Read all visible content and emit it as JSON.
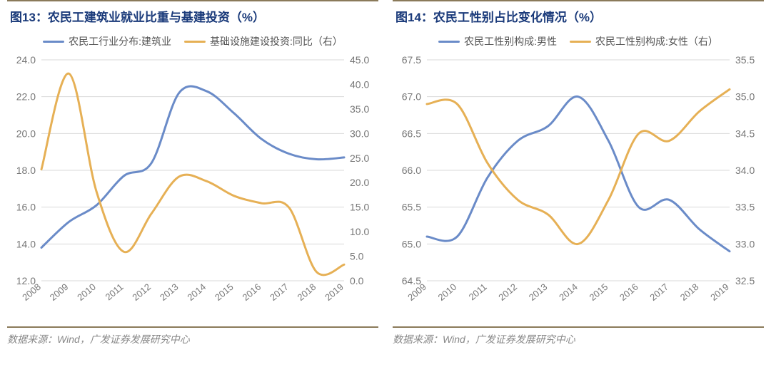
{
  "left": {
    "title": "图13：农民工建筑业就业比重与基建投资（%）",
    "source": "数据来源：Wind，广发证券发展研究中心",
    "chart": {
      "type": "line-dual-axis",
      "series": [
        {
          "name": "农民工行业分布:建筑业",
          "color": "#6a8bc8",
          "axis": "left",
          "x": [
            2008,
            2009,
            2010,
            2011,
            2012,
            2013,
            2014,
            2015,
            2016,
            2017,
            2018,
            2019
          ],
          "y": [
            13.8,
            15.2,
            16.1,
            17.7,
            18.4,
            22.2,
            22.3,
            21.1,
            19.7,
            18.9,
            18.6,
            18.7
          ]
        },
        {
          "name": "基础设施建设投资:同比（右）",
          "color": "#e6b055",
          "axis": "right",
          "x": [
            2008,
            2009,
            2010,
            2011,
            2012,
            2013,
            2014,
            2015,
            2016,
            2017,
            2018,
            2019
          ],
          "y": [
            22.7,
            42.2,
            18.2,
            5.9,
            13.7,
            21.2,
            20.3,
            17.3,
            15.8,
            14.9,
            1.8,
            3.3
          ]
        }
      ],
      "xlim": [
        2008,
        2019
      ],
      "left_ylim": [
        12,
        24
      ],
      "left_step": 2,
      "right_ylim": [
        0,
        45
      ],
      "right_step": 5,
      "grid_color": "#d9d9d9",
      "bg": "#ffffff",
      "line_width": 3,
      "label_fontsize": 14,
      "xtick_rotate": -40
    }
  },
  "right": {
    "title": "图14：农民工性别占比变化情况（%）",
    "source": "数据来源：Wind，广发证券发展研究中心",
    "chart": {
      "type": "line-dual-axis",
      "series": [
        {
          "name": "农民工性别构成:男性",
          "color": "#6a8bc8",
          "axis": "left",
          "x": [
            2009,
            2010,
            2011,
            2012,
            2013,
            2014,
            2015,
            2016,
            2017,
            2018,
            2019
          ],
          "y": [
            65.1,
            65.1,
            65.9,
            66.4,
            66.6,
            67.0,
            66.4,
            65.5,
            65.6,
            65.2,
            64.9
          ]
        },
        {
          "name": "农民工性别构成:女性（右）",
          "color": "#e6b055",
          "axis": "right",
          "x": [
            2009,
            2010,
            2011,
            2012,
            2013,
            2014,
            2015,
            2016,
            2017,
            2018,
            2019
          ],
          "y": [
            34.9,
            34.9,
            34.1,
            33.6,
            33.4,
            33.0,
            33.6,
            34.5,
            34.4,
            34.8,
            35.1
          ]
        }
      ],
      "xlim": [
        2009,
        2019
      ],
      "left_ylim": [
        64.5,
        67.5
      ],
      "left_step": 0.5,
      "right_ylim": [
        32.5,
        35.5
      ],
      "right_step": 0.5,
      "grid_color": "#d9d9d9",
      "bg": "#ffffff",
      "line_width": 3,
      "label_fontsize": 14,
      "xtick_rotate": -40
    }
  }
}
